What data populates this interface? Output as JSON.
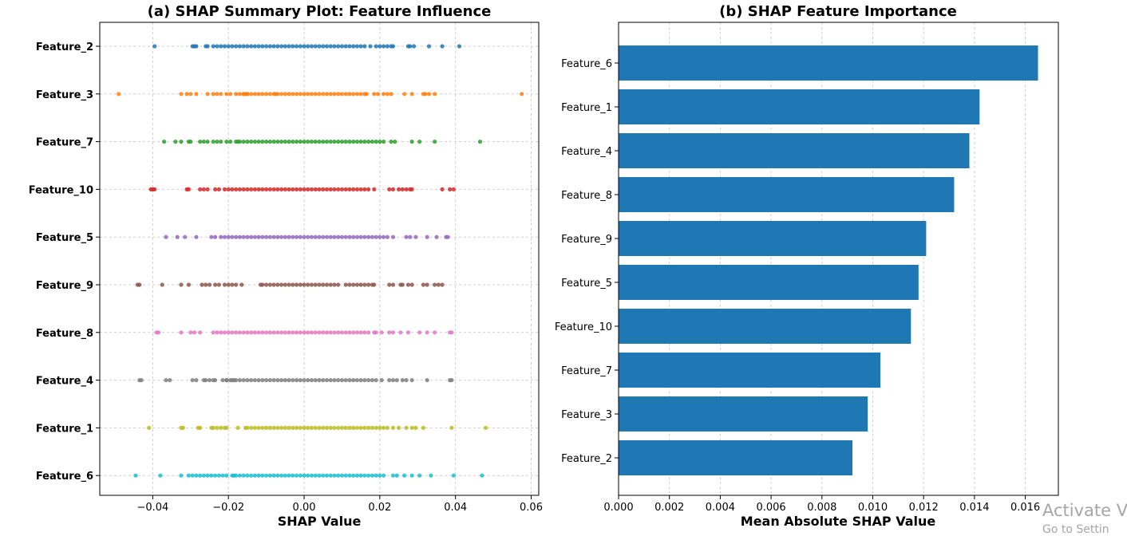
{
  "chart_data": [
    {
      "type": "scatter",
      "title": "(a) SHAP Summary Plot: Feature Influence",
      "xlabel": "SHAP Value",
      "ylabel": "",
      "xlim": [
        -0.054,
        0.062
      ],
      "xticks": [
        -0.04,
        -0.02,
        0.0,
        0.02,
        0.04,
        0.06
      ],
      "xtick_labels": [
        "−0.04",
        "−0.02",
        "0.00",
        "0.02",
        "0.04",
        "0.06"
      ],
      "grid": true,
      "categories": [
        "Feature_2",
        "Feature_3",
        "Feature_7",
        "Feature_10",
        "Feature_5",
        "Feature_9",
        "Feature_8",
        "Feature_4",
        "Feature_1",
        "Feature_6"
      ],
      "series": [
        {
          "category": "Feature_2",
          "color": "#1f77b4",
          "x": [
            -0.0395,
            -0.0295,
            -0.029,
            -0.0285,
            -0.026,
            -0.0255,
            -0.024,
            -0.023,
            -0.022,
            -0.021,
            -0.02,
            -0.019,
            -0.018,
            -0.017,
            -0.016,
            -0.015,
            -0.014,
            -0.013,
            -0.012,
            -0.011,
            -0.01,
            -0.009,
            -0.008,
            -0.007,
            -0.006,
            -0.005,
            -0.004,
            -0.003,
            -0.002,
            -0.001,
            0.0,
            0.001,
            0.002,
            0.003,
            0.004,
            0.005,
            0.006,
            0.007,
            0.008,
            0.009,
            0.01,
            0.011,
            0.012,
            0.013,
            0.014,
            0.015,
            0.016,
            0.0175,
            0.019,
            0.02,
            0.021,
            0.022,
            0.023,
            0.0235,
            0.0275,
            0.028,
            0.029,
            0.033,
            0.0365,
            0.041
          ]
        },
        {
          "category": "Feature_3",
          "color": "#ff7f0e",
          "x": [
            -0.049,
            -0.0325,
            -0.031,
            -0.03,
            -0.0285,
            -0.0255,
            -0.024,
            -0.023,
            -0.022,
            -0.0205,
            -0.0195,
            -0.018,
            -0.017,
            -0.016,
            -0.015,
            -0.0155,
            -0.0075,
            -0.016,
            -0.015,
            -0.014,
            -0.013,
            -0.012,
            -0.011,
            -0.01,
            -0.009,
            -0.008,
            -0.007,
            -0.006,
            -0.005,
            -0.004,
            -0.003,
            -0.002,
            -0.001,
            0.0,
            0.001,
            0.002,
            0.003,
            0.004,
            0.005,
            0.006,
            0.007,
            0.008,
            0.009,
            0.01,
            0.011,
            0.012,
            0.013,
            0.014,
            0.015,
            0.016,
            0.0165,
            0.0185,
            0.0195,
            0.021,
            0.022,
            0.023,
            0.0265,
            0.0285,
            0.0315,
            0.032,
            0.033,
            0.0345,
            0.0575
          ]
        },
        {
          "category": "Feature_7",
          "color": "#2ca02c",
          "x": [
            -0.037,
            -0.034,
            -0.0325,
            -0.0305,
            -0.03,
            -0.0275,
            -0.0265,
            -0.0255,
            -0.024,
            -0.023,
            -0.022,
            -0.0205,
            -0.0195,
            -0.018,
            -0.0175,
            -0.017,
            -0.016,
            -0.015,
            -0.014,
            -0.013,
            -0.012,
            -0.011,
            -0.01,
            -0.009,
            -0.008,
            -0.007,
            -0.006,
            -0.005,
            -0.004,
            -0.003,
            -0.002,
            -0.001,
            0.0,
            0.001,
            0.002,
            0.003,
            0.004,
            0.005,
            0.006,
            0.007,
            0.008,
            0.009,
            0.01,
            0.011,
            0.012,
            0.013,
            0.014,
            0.015,
            0.016,
            0.017,
            0.018,
            0.019,
            0.02,
            0.021,
            0.023,
            0.024,
            0.0285,
            0.0305,
            0.0345,
            0.0465
          ]
        },
        {
          "category": "Feature_10",
          "color": "#d62728",
          "x": [
            -0.0405,
            -0.04,
            -0.0395,
            -0.031,
            -0.0305,
            -0.0275,
            -0.0265,
            -0.0255,
            -0.0235,
            -0.0225,
            -0.021,
            -0.02,
            -0.019,
            -0.018,
            -0.017,
            -0.016,
            -0.015,
            -0.014,
            -0.013,
            -0.012,
            -0.011,
            -0.01,
            -0.009,
            -0.008,
            -0.007,
            -0.006,
            -0.005,
            -0.004,
            -0.003,
            -0.002,
            -0.001,
            0.0,
            0.001,
            0.002,
            0.003,
            0.004,
            0.005,
            0.006,
            0.007,
            0.008,
            0.009,
            0.01,
            0.011,
            0.012,
            0.013,
            0.014,
            0.015,
            0.016,
            0.017,
            0.0185,
            0.0225,
            0.0235,
            0.025,
            0.026,
            0.027,
            0.028,
            0.0285,
            0.0365,
            0.0385,
            0.0395
          ]
        },
        {
          "category": "Feature_5",
          "color": "#9467bd",
          "x": [
            -0.0365,
            -0.0335,
            -0.0315,
            -0.0285,
            -0.0245,
            -0.0235,
            -0.022,
            -0.021,
            -0.02,
            -0.019,
            -0.018,
            -0.017,
            -0.016,
            -0.015,
            -0.014,
            -0.013,
            -0.012,
            -0.011,
            -0.01,
            -0.009,
            -0.008,
            -0.007,
            -0.006,
            -0.005,
            -0.004,
            -0.003,
            -0.002,
            -0.001,
            0.0,
            0.001,
            0.002,
            0.003,
            0.004,
            0.005,
            0.006,
            0.007,
            0.008,
            0.009,
            0.01,
            0.011,
            0.012,
            0.013,
            0.014,
            0.015,
            0.016,
            0.017,
            0.018,
            0.019,
            0.02,
            0.021,
            0.022,
            0.0235,
            0.027,
            0.028,
            0.0295,
            0.0325,
            0.035,
            0.0375,
            0.038
          ]
        },
        {
          "category": "Feature_9",
          "color": "#8c564b",
          "x": [
            -0.044,
            -0.0435,
            -0.0375,
            -0.0325,
            -0.0305,
            -0.027,
            -0.026,
            -0.025,
            -0.0235,
            -0.0225,
            -0.021,
            -0.02,
            -0.019,
            -0.018,
            -0.0165,
            -0.0115,
            -0.011,
            -0.01,
            -0.009,
            -0.008,
            -0.007,
            -0.006,
            -0.005,
            -0.004,
            -0.003,
            -0.002,
            -0.001,
            0.0,
            0.001,
            0.002,
            0.003,
            0.004,
            0.005,
            0.006,
            0.007,
            0.008,
            0.009,
            0.011,
            0.012,
            0.013,
            0.014,
            0.015,
            0.016,
            0.017,
            0.018,
            0.0185,
            0.0225,
            0.0235,
            0.0255,
            0.026,
            0.0275,
            0.0285,
            0.0315,
            0.0325,
            0.0345,
            0.0355,
            0.0365
          ]
        },
        {
          "category": "Feature_8",
          "color": "#e377c2",
          "x": [
            -0.039,
            -0.0385,
            -0.0325,
            -0.03,
            -0.029,
            -0.0275,
            -0.024,
            -0.023,
            -0.022,
            -0.021,
            -0.02,
            -0.019,
            -0.018,
            -0.017,
            -0.016,
            -0.015,
            -0.014,
            -0.013,
            -0.012,
            -0.011,
            -0.01,
            -0.009,
            -0.008,
            -0.007,
            -0.006,
            -0.005,
            -0.004,
            -0.003,
            -0.002,
            -0.001,
            0.0,
            0.001,
            0.002,
            0.003,
            0.004,
            0.005,
            0.006,
            0.007,
            0.008,
            0.009,
            0.01,
            0.011,
            0.012,
            0.013,
            0.014,
            0.015,
            0.016,
            0.017,
            0.0185,
            0.019,
            0.0205,
            0.0225,
            0.0235,
            0.0255,
            0.0275,
            0.0305,
            0.0325,
            0.0345,
            0.0385,
            0.039
          ]
        },
        {
          "category": "Feature_4",
          "color": "#7f7f7f",
          "x": [
            -0.0435,
            -0.043,
            -0.0365,
            -0.0355,
            -0.0295,
            -0.0285,
            -0.0265,
            -0.026,
            -0.025,
            -0.024,
            -0.0235,
            -0.0215,
            -0.0205,
            -0.0195,
            -0.0205,
            -0.0185,
            -0.019,
            -0.018,
            -0.017,
            -0.016,
            -0.015,
            -0.014,
            -0.013,
            -0.012,
            -0.011,
            -0.01,
            -0.009,
            -0.008,
            -0.007,
            -0.006,
            -0.005,
            -0.004,
            -0.003,
            -0.002,
            -0.001,
            0.0,
            0.001,
            0.002,
            0.003,
            0.004,
            0.005,
            0.006,
            0.007,
            0.008,
            0.009,
            0.01,
            0.011,
            0.012,
            0.013,
            0.014,
            0.015,
            0.016,
            0.017,
            0.018,
            0.019,
            0.0205,
            0.0225,
            0.0235,
            0.0245,
            0.026,
            0.027,
            0.0285,
            0.0325,
            0.0385,
            0.039
          ]
        },
        {
          "category": "Feature_1",
          "color": "#bcbd22",
          "x": [
            -0.041,
            -0.0325,
            -0.032,
            -0.028,
            -0.0275,
            -0.0245,
            -0.024,
            -0.023,
            -0.022,
            -0.021,
            -0.0205,
            -0.0175,
            -0.0155,
            -0.015,
            -0.014,
            -0.013,
            -0.012,
            -0.011,
            -0.01,
            -0.009,
            -0.008,
            -0.007,
            -0.006,
            -0.005,
            -0.004,
            -0.003,
            -0.002,
            -0.001,
            0.0,
            0.001,
            0.002,
            0.003,
            0.004,
            0.005,
            0.006,
            0.007,
            0.008,
            0.009,
            0.01,
            0.011,
            0.012,
            0.013,
            0.014,
            0.015,
            0.016,
            0.017,
            0.018,
            0.019,
            0.02,
            0.021,
            0.022,
            0.0235,
            0.025,
            0.027,
            0.0285,
            0.0295,
            0.0315,
            0.039,
            0.048
          ]
        },
        {
          "category": "Feature_6",
          "color": "#17becf",
          "x": [
            -0.0445,
            -0.038,
            -0.0325,
            -0.0305,
            -0.0295,
            -0.0285,
            -0.0275,
            -0.0265,
            -0.0255,
            -0.0245,
            -0.0235,
            -0.0225,
            -0.0215,
            -0.0205,
            -0.0185,
            -0.019,
            -0.018,
            -0.017,
            -0.016,
            -0.015,
            -0.014,
            -0.013,
            -0.012,
            -0.011,
            -0.01,
            -0.009,
            -0.008,
            -0.007,
            -0.006,
            -0.005,
            -0.004,
            -0.003,
            -0.002,
            -0.001,
            0.0,
            0.001,
            0.002,
            0.003,
            0.004,
            0.005,
            0.006,
            0.007,
            0.008,
            0.009,
            0.01,
            0.011,
            0.012,
            0.013,
            0.014,
            0.015,
            0.016,
            0.017,
            0.018,
            0.019,
            0.02,
            0.021,
            0.0235,
            0.0245,
            0.0265,
            0.0285,
            0.0305,
            0.0335,
            0.0395,
            0.047
          ]
        }
      ]
    },
    {
      "type": "bar",
      "orientation": "horizontal",
      "title": "(b) SHAP Feature Importance",
      "xlabel": "Mean Absolute SHAP Value",
      "ylabel": "",
      "xlim": [
        0.0,
        0.0173
      ],
      "xticks": [
        0.0,
        0.002,
        0.004,
        0.006,
        0.008,
        0.01,
        0.012,
        0.014,
        0.016
      ],
      "xtick_labels": [
        "0.000",
        "0.002",
        "0.004",
        "0.006",
        "0.008",
        "0.010",
        "0.012",
        "0.014",
        "0.016"
      ],
      "grid": true,
      "color": "#1f77b4",
      "categories": [
        "Feature_6",
        "Feature_1",
        "Feature_4",
        "Feature_8",
        "Feature_9",
        "Feature_5",
        "Feature_10",
        "Feature_7",
        "Feature_3",
        "Feature_2"
      ],
      "values": [
        0.0165,
        0.0142,
        0.0138,
        0.0132,
        0.0121,
        0.0118,
        0.0115,
        0.0103,
        0.0098,
        0.0092
      ]
    }
  ],
  "watermark": {
    "line1": "Activate V",
    "line2": "Go to Settin"
  }
}
